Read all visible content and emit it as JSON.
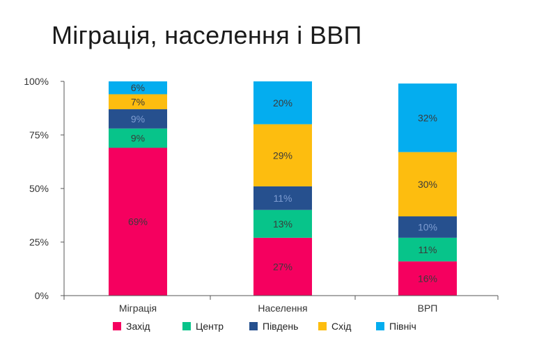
{
  "title": "Міграція, населення і ВВП",
  "chart_data": {
    "type": "bar",
    "stacked": true,
    "categories": [
      "Міграція",
      "Населення",
      "ВРП"
    ],
    "series": [
      {
        "name": "Захід",
        "color": "#f5005f",
        "values": [
          69,
          27,
          16
        ]
      },
      {
        "name": "Центр",
        "color": "#07c48a",
        "values": [
          9,
          13,
          11
        ]
      },
      {
        "name": "Південь",
        "color": "#26508e",
        "values": [
          9,
          11,
          10
        ]
      },
      {
        "name": "Схід",
        "color": "#fdbd0f",
        "values": [
          7,
          29,
          30
        ]
      },
      {
        "name": "Північ",
        "color": "#04adef",
        "values": [
          6,
          20,
          32
        ]
      }
    ],
    "data_labels": [
      [
        "69%",
        "27%",
        "16%"
      ],
      [
        "9%",
        "13%",
        "11%"
      ],
      [
        "9%",
        "11%",
        "10%"
      ],
      [
        "7%",
        "29%",
        "30%"
      ],
      [
        "6%",
        "20%",
        "32%"
      ]
    ],
    "y_ticks": [
      "0%",
      "25%",
      "50%",
      "75%",
      "100%"
    ],
    "ylim": [
      0,
      100
    ],
    "legend_position": "bottom",
    "grid": false
  }
}
